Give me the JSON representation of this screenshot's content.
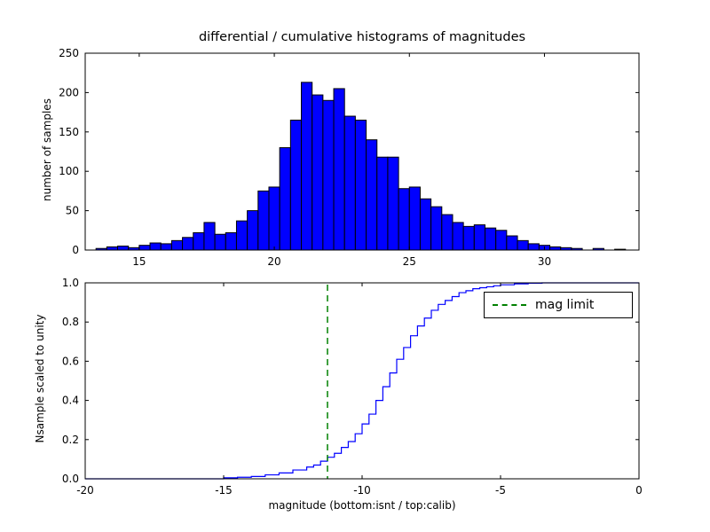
{
  "chart_data": [
    {
      "type": "bar",
      "title": "differential / cumulative histograms of magnitudes",
      "ylabel": "number of samples",
      "xlabel": "",
      "xlim": [
        13,
        33.5
      ],
      "ylim": [
        0,
        250
      ],
      "xticks": [
        15,
        20,
        25,
        30
      ],
      "yticks": [
        0,
        50,
        100,
        150,
        200,
        250
      ],
      "bin_start": 13.4,
      "bin_width": 0.4,
      "counts": [
        2,
        4,
        5,
        3,
        6,
        9,
        8,
        12,
        16,
        22,
        35,
        20,
        22,
        37,
        50,
        75,
        80,
        130,
        165,
        213,
        197,
        190,
        205,
        170,
        165,
        140,
        118,
        118,
        78,
        80,
        65,
        55,
        45,
        35,
        30,
        32,
        28,
        25,
        18,
        12,
        8,
        6,
        4,
        3,
        2,
        0,
        2,
        0,
        1,
        0
      ],
      "bar_color": "#0000ff",
      "bar_edge": "#000000",
      "grid": false,
      "legend": null
    },
    {
      "type": "line",
      "step": true,
      "ylabel": "Nsample scaled to unity",
      "xlabel": "magnitude (bottom:isnt / top:calib)",
      "xlim": [
        -20,
        0
      ],
      "ylim": [
        0,
        1
      ],
      "xticks": [
        -20,
        -15,
        -10,
        -5,
        0
      ],
      "yticks": [
        0,
        0.2,
        0.4,
        0.6,
        0.8,
        1
      ],
      "x": [
        -20,
        -15,
        -14.5,
        -14,
        -13.5,
        -13,
        -12.5,
        -12,
        -11.75,
        -11.5,
        -11.25,
        -11,
        -10.75,
        -10.5,
        -10.25,
        -10,
        -9.75,
        -9.5,
        -9.25,
        -9,
        -8.75,
        -8.5,
        -8.25,
        -8,
        -7.75,
        -7.5,
        -7.25,
        -7,
        -6.75,
        -6.5,
        -6.25,
        -6,
        -5.75,
        -5.5,
        -5.25,
        -5,
        -4.5,
        -4,
        -3.5,
        0
      ],
      "y": [
        0,
        0.005,
        0.008,
        0.012,
        0.02,
        0.03,
        0.045,
        0.06,
        0.07,
        0.09,
        0.11,
        0.13,
        0.16,
        0.19,
        0.23,
        0.28,
        0.33,
        0.4,
        0.47,
        0.54,
        0.61,
        0.67,
        0.73,
        0.78,
        0.82,
        0.86,
        0.89,
        0.91,
        0.93,
        0.95,
        0.96,
        0.97,
        0.975,
        0.98,
        0.985,
        0.99,
        0.995,
        0.998,
        1.0,
        1.0
      ],
      "line_color": "#0000ff",
      "vline": {
        "x": -11.25,
        "color": "#008000",
        "style": "dashed",
        "label": "mag limit"
      },
      "legend": {
        "label": "mag limit",
        "position": "upper right"
      },
      "grid": false
    }
  ]
}
